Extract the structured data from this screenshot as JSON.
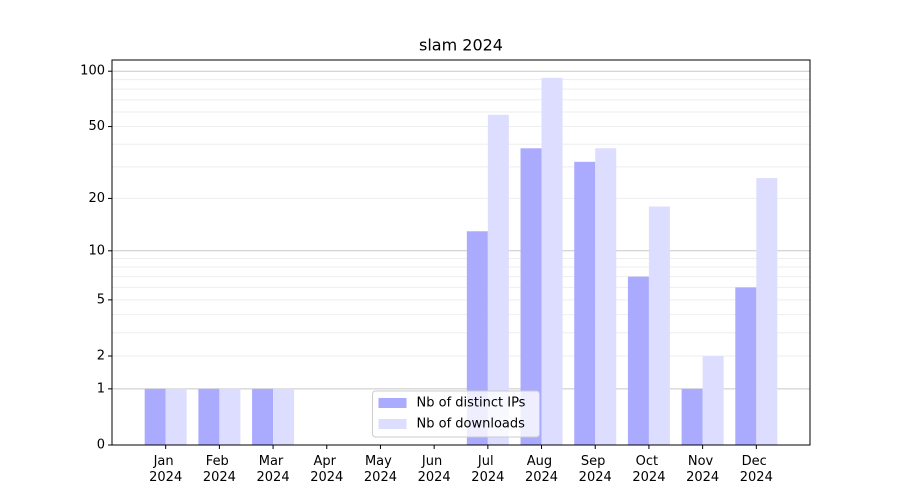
{
  "chart_data": {
    "type": "bar",
    "title": "slam 2024",
    "categories": [
      "Jan 2024",
      "Feb 2024",
      "Mar 2024",
      "Apr 2024",
      "May 2024",
      "Jun 2024",
      "Jul 2024",
      "Aug 2024",
      "Sep 2024",
      "Oct 2024",
      "Nov 2024",
      "Dec 2024"
    ],
    "series": [
      {
        "name": "Nb of distinct IPs",
        "color": "#aaaaff",
        "values": [
          1,
          1,
          1,
          0,
          0,
          0,
          13,
          38,
          32,
          7,
          1,
          6
        ]
      },
      {
        "name": "Nb of downloads",
        "color": "#ddddff",
        "values": [
          1,
          1,
          1,
          0,
          0,
          0,
          58,
          92,
          38,
          18,
          2,
          26
        ]
      }
    ],
    "yscale": "log1p",
    "ylim": [
      0,
      115
    ],
    "yticks": [
      0,
      1,
      2,
      5,
      10,
      20,
      50,
      100
    ],
    "grid": true,
    "legend": "lower center"
  }
}
